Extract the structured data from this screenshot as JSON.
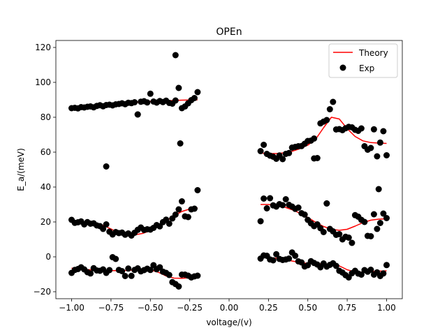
{
  "chart_data": {
    "type": "scatter",
    "title": "OPEn",
    "xlabel": "voltage/(v)",
    "ylabel": "E_a/(meV)",
    "xlim": [
      -1.1,
      1.1
    ],
    "ylim": [
      -24,
      124
    ],
    "xticks": [
      -1.0,
      -0.75,
      -0.5,
      -0.25,
      0.0,
      0.25,
      0.5,
      0.75,
      1.0
    ],
    "xtick_labels": [
      "−1.00",
      "−0.75",
      "−0.50",
      "−0.25",
      "0.00",
      "0.25",
      "0.50",
      "0.75",
      "1.00"
    ],
    "yticks": [
      -20,
      0,
      20,
      40,
      60,
      80,
      100,
      120
    ],
    "ytick_labels": [
      "−20",
      "0",
      "20",
      "40",
      "60",
      "80",
      "100",
      "120"
    ],
    "grid": false,
    "legend": {
      "placement": "top-right",
      "entries": [
        {
          "label": "Theory",
          "kind": "line",
          "color": "#ff0000"
        },
        {
          "label": "Exp",
          "kind": "marker",
          "color": "#000000"
        }
      ]
    },
    "series": [
      {
        "name": "Theory",
        "kind": "line",
        "color": "#ff0000",
        "segments": [
          {
            "x": [
              -1.0,
              -0.95,
              -0.9,
              -0.85,
              -0.8,
              -0.75,
              -0.7,
              -0.65,
              -0.6,
              -0.55,
              -0.5,
              -0.45,
              -0.4,
              -0.35,
              -0.3,
              -0.25,
              -0.2
            ],
            "y": [
              85.5,
              85.8,
              86.1,
              86.5,
              86.9,
              87.3,
              87.7,
              88.1,
              88.5,
              88.8,
              89.1,
              89.3,
              89.5,
              89.6,
              89.8,
              89.9,
              90.0
            ]
          },
          {
            "x": [
              -1.0,
              -0.95,
              -0.9,
              -0.85,
              -0.8,
              -0.75,
              -0.7,
              -0.65,
              -0.6,
              -0.55,
              -0.5,
              -0.45,
              -0.4,
              -0.35,
              -0.3,
              -0.25,
              -0.2
            ],
            "y": [
              20,
              19.8,
              19.6,
              19.0,
              18.0,
              16.0,
              13.6,
              12.6,
              12.6,
              13.4,
              15.0,
              17.5,
              20.6,
              23.5,
              26.0,
              27.4,
              28.0
            ]
          },
          {
            "x": [
              -1.0,
              -0.95,
              -0.9,
              -0.85,
              -0.8,
              -0.75,
              -0.7,
              -0.65,
              -0.6,
              -0.55,
              -0.5,
              -0.45,
              -0.4,
              -0.35,
              -0.3,
              -0.25,
              -0.2
            ],
            "y": [
              -6.5,
              -7.0,
              -7.3,
              -7.6,
              -7.8,
              -7.9,
              -7.9,
              -7.8,
              -7.5,
              -7.3,
              -7.5,
              -8.8,
              -11.0,
              -12.2,
              -12.3,
              -12.0,
              -11.5
            ]
          },
          {
            "x": [
              0.2,
              0.25,
              0.3,
              0.35,
              0.4,
              0.45,
              0.5,
              0.55,
              0.6,
              0.65,
              0.7,
              0.75,
              0.8,
              0.85,
              0.9,
              0.95,
              1.0
            ],
            "y": [
              59.5,
              59.2,
              59.2,
              59.6,
              60.5,
              62.0,
              64.0,
              67.5,
              74.0,
              80.0,
              79.0,
              73.5,
              69.0,
              66.5,
              65.5,
              65.2,
              65.0
            ]
          },
          {
            "x": [
              0.2,
              0.25,
              0.3,
              0.35,
              0.4,
              0.45,
              0.5,
              0.55,
              0.6,
              0.65,
              0.7,
              0.75,
              0.8,
              0.85,
              0.9,
              0.95,
              1.0
            ],
            "y": [
              30.0,
              30.0,
              29.6,
              28.6,
              27.0,
              25.0,
              22.6,
              19.8,
              17.4,
              15.8,
              15.2,
              15.8,
              17.6,
              19.6,
              21.0,
              21.6,
              21.8
            ]
          },
          {
            "x": [
              0.2,
              0.25,
              0.3,
              0.35,
              0.4,
              0.45,
              0.5,
              0.55,
              0.6,
              0.65,
              0.7,
              0.75,
              0.8,
              0.85,
              0.9,
              0.95,
              1.0
            ],
            "y": [
              -0.2,
              -0.4,
              -0.8,
              -1.5,
              -2.4,
              -3.2,
              -3.8,
              -4.0,
              -4.0,
              -4.3,
              -5.2,
              -7.4,
              -8.7,
              -8.7,
              -8.5,
              -8.2,
              -8.0
            ]
          }
        ]
      },
      {
        "name": "Exp",
        "kind": "scatter",
        "color": "#000000",
        "x": [
          -1.0,
          -0.98,
          -0.96,
          -0.94,
          -0.92,
          -0.9,
          -0.88,
          -0.86,
          -0.84,
          -0.82,
          -0.8,
          -0.78,
          -0.76,
          -0.74,
          -0.72,
          -0.7,
          -0.68,
          -0.66,
          -0.64,
          -0.62,
          -0.6,
          -0.58,
          -0.56,
          -0.54,
          -0.52,
          -0.5,
          -0.48,
          -0.46,
          -0.44,
          -0.42,
          -0.4,
          -0.38,
          -0.36,
          -0.34,
          -0.32,
          -0.3,
          -0.28,
          -0.26,
          -0.24,
          -0.22,
          -0.2,
          -0.78,
          -0.58,
          -1.0,
          -0.98,
          -0.96,
          -0.94,
          -0.92,
          -0.9,
          -0.88,
          -0.86,
          -0.84,
          -0.82,
          -0.8,
          -0.78,
          -0.76,
          -0.74,
          -0.72,
          -0.7,
          -0.68,
          -0.66,
          -0.64,
          -0.62,
          -0.6,
          -0.58,
          -0.56,
          -0.54,
          -0.52,
          -0.5,
          -0.48,
          -0.46,
          -0.44,
          -0.42,
          -0.4,
          -0.38,
          -0.36,
          -0.34,
          -0.32,
          -0.3,
          -0.28,
          -0.26,
          -0.24,
          -0.22,
          -0.2,
          -1.0,
          -0.98,
          -0.96,
          -0.94,
          -0.92,
          -0.9,
          -0.88,
          -0.86,
          -0.84,
          -0.82,
          -0.8,
          -0.78,
          -0.76,
          -0.74,
          -0.72,
          -0.7,
          -0.68,
          -0.66,
          -0.64,
          -0.62,
          -0.6,
          -0.58,
          -0.56,
          -0.54,
          -0.52,
          -0.5,
          -0.48,
          -0.46,
          -0.44,
          -0.42,
          -0.4,
          -0.38,
          -0.36,
          -0.34,
          -0.32,
          -0.3,
          -0.28,
          -0.26,
          -0.24,
          -0.22,
          -0.2,
          -0.34,
          -0.31,
          0.2,
          0.22,
          0.24,
          0.26,
          0.28,
          0.3,
          0.32,
          0.34,
          0.36,
          0.38,
          0.4,
          0.42,
          0.44,
          0.46,
          0.48,
          0.5,
          0.52,
          0.54,
          0.56,
          0.58,
          0.6,
          0.62,
          0.64,
          0.66,
          0.68,
          0.7,
          0.72,
          0.74,
          0.76,
          0.78,
          0.8,
          0.82,
          0.84,
          0.86,
          0.88,
          0.9,
          0.92,
          0.94,
          0.96,
          0.98,
          1.0,
          0.2,
          0.22,
          0.24,
          0.26,
          0.28,
          0.3,
          0.32,
          0.34,
          0.36,
          0.38,
          0.4,
          0.42,
          0.44,
          0.46,
          0.48,
          0.5,
          0.52,
          0.54,
          0.56,
          0.58,
          0.6,
          0.62,
          0.64,
          0.66,
          0.68,
          0.7,
          0.72,
          0.74,
          0.76,
          0.78,
          0.8,
          0.82,
          0.84,
          0.86,
          0.88,
          0.9,
          0.92,
          0.94,
          0.96,
          0.98,
          1.0,
          0.2,
          0.22,
          0.24,
          0.26,
          0.28,
          0.3,
          0.32,
          0.34,
          0.36,
          0.38,
          0.4,
          0.42,
          0.44,
          0.46,
          0.48,
          0.5,
          0.52,
          0.54,
          0.56,
          0.58,
          0.6,
          0.62,
          0.64,
          0.66,
          0.68,
          0.7,
          0.72,
          0.74,
          0.76,
          0.78,
          0.8,
          0.82,
          0.84,
          0.86,
          0.88,
          0.9,
          0.92,
          0.94,
          0.96,
          0.98,
          1.0,
          0.54,
          0.62,
          0.95
        ],
        "y": [
          85.2,
          85.4,
          85.1,
          85.8,
          85.6,
          86.0,
          86.2,
          85.7,
          86.5,
          86.9,
          86.3,
          87.0,
          87.2,
          86.8,
          87.4,
          87.6,
          88.0,
          87.5,
          88.3,
          88.1,
          88.6,
          81.6,
          88.9,
          89.2,
          88.5,
          93.5,
          89.0,
          88.4,
          89.3,
          88.7,
          89.5,
          88.2,
          87.8,
          89.6,
          96.8,
          85.2,
          86.2,
          88.0,
          89.8,
          91.0,
          94.4,
          51.8,
          81.6,
          21.2,
          19.5,
          19.8,
          20.3,
          18.6,
          19.9,
          19.0,
          19.2,
          18.0,
          17.6,
          16.0,
          18.6,
          14.4,
          12.8,
          14.2,
          13.6,
          13.9,
          12.7,
          13.4,
          12.2,
          13.8,
          15.5,
          16.8,
          15.4,
          15.8,
          15.6,
          16.6,
          18.2,
          17.5,
          19.9,
          21.3,
          19.0,
          22.0,
          24.2,
          27.2,
          31.8,
          23.2,
          22.8,
          27.2,
          27.6,
          38.2,
          -9.2,
          -7.5,
          -7.0,
          -6.0,
          -7.2,
          -8.8,
          -9.5,
          -6.5,
          -7.8,
          -8.0,
          -7.2,
          -9.2,
          -7.6,
          -0.2,
          -1.2,
          -7.5,
          -8.2,
          -11.0,
          -6.7,
          -10.9,
          -7.5,
          -6.6,
          -8.3,
          -7.6,
          -6.8,
          -7.5,
          -4.8,
          -7.1,
          -6.0,
          -8.5,
          -9.2,
          -10.4,
          -14.5,
          -15.6,
          -17.0,
          -10.2,
          -10.2,
          -10.8,
          -11.8,
          -11.2,
          -10.8,
          115.6,
          65.0,
          60.6,
          64.2,
          59.0,
          58.0,
          57.4,
          56.2,
          58.1,
          56.0,
          59.0,
          59.5,
          62.6,
          63.0,
          63.4,
          63.5,
          64.8,
          66.4,
          66.6,
          67.8,
          56.6,
          76.5,
          77.5,
          78.4,
          84.6,
          88.8,
          73.0,
          73.2,
          72.6,
          73.7,
          74.5,
          74.2,
          72.8,
          72.2,
          73.6,
          63.4,
          61.4,
          62.4,
          73.1,
          57.6,
          65.5,
          72.0,
          58.2,
          20.4,
          33.4,
          27.8,
          33.6,
          29.5,
          28.8,
          30.2,
          29.6,
          33.0,
          29.8,
          28.8,
          27.5,
          28.2,
          25.0,
          24.2,
          21.2,
          19.2,
          17.6,
          18.6,
          16.4,
          14.2,
          30.6,
          16.0,
          14.6,
          12.6,
          13.0,
          10.0,
          11.5,
          11.0,
          8.0,
          23.9,
          23.0,
          21.2,
          20.0,
          12.0,
          11.8,
          24.4,
          16.0,
          19.4,
          24.8,
          22.2,
          -1.0,
          0.8,
          0.6,
          -1.5,
          -2.0,
          1.5,
          -1.2,
          -1.8,
          -1.5,
          -1.0,
          2.5,
          0.6,
          -2.6,
          -3.2,
          -5.5,
          -4.8,
          -2.5,
          -3.5,
          -4.4,
          -6.0,
          -3.8,
          -5.6,
          -4.6,
          -3.7,
          -5.2,
          -8.0,
          -9.0,
          -10.5,
          -11.8,
          -9.4,
          -8.0,
          -9.6,
          -10.2,
          -7.6,
          -8.5,
          -7.4,
          -10.2,
          -8.9,
          -11.0,
          -9.5,
          -4.7,
          56.4,
          30.6,
          38.8
        ]
      }
    ]
  }
}
